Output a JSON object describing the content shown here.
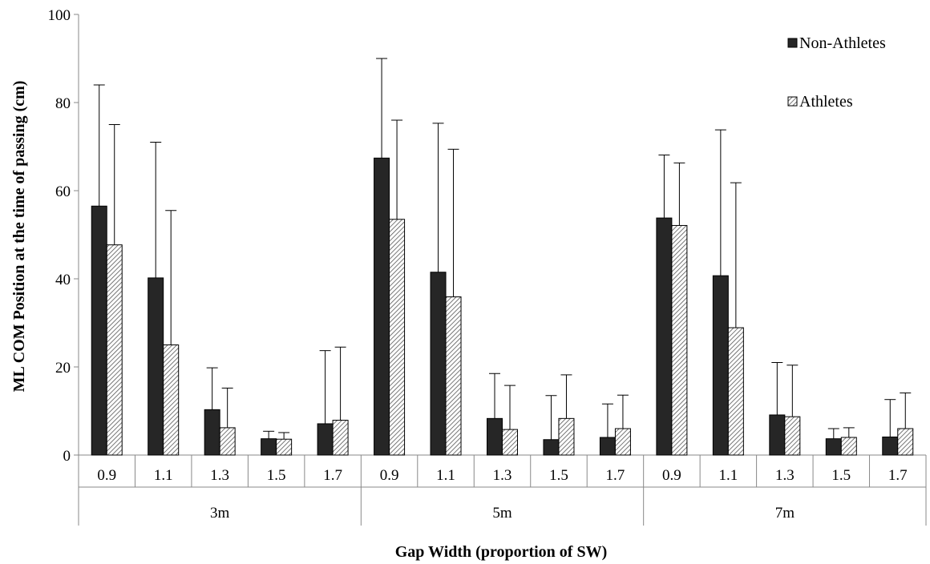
{
  "chart_data": {
    "type": "bar",
    "xlabel": "Gap Width (proportion of SW)",
    "ylabel": "ML COM Position at the time of passing (cm)",
    "ylim": [
      0,
      100
    ],
    "yticks": [
      0,
      20,
      40,
      60,
      80,
      100
    ],
    "grid": false,
    "legend_position": "top-right",
    "groups": [
      "3m",
      "5m",
      "7m"
    ],
    "subcategories": [
      "0.9",
      "1.1",
      "1.3",
      "1.5",
      "1.7"
    ],
    "series": [
      {
        "name": "Non-Athletes",
        "color": "#262626",
        "pattern": "solid",
        "values": [
          56.5,
          40.2,
          10.3,
          3.7,
          7.1,
          67.4,
          41.5,
          8.3,
          3.5,
          4.0,
          53.8,
          40.7,
          9.1,
          3.7,
          4.1
        ],
        "errors": [
          27.5,
          30.8,
          9.5,
          1.7,
          16.6,
          22.6,
          33.8,
          10.2,
          10.0,
          7.6,
          14.3,
          33.1,
          11.9,
          2.3,
          8.5
        ]
      },
      {
        "name": "Athletes",
        "color": "#bfbfbf",
        "pattern": "hatched",
        "values": [
          47.7,
          25.0,
          6.2,
          3.6,
          7.9,
          53.5,
          35.9,
          5.8,
          8.3,
          6.0,
          52.1,
          28.9,
          8.7,
          4.0,
          6.0
        ],
        "errors": [
          27.3,
          30.5,
          9.0,
          1.5,
          16.6,
          22.5,
          33.5,
          10.0,
          9.9,
          7.6,
          14.2,
          32.9,
          11.7,
          2.2,
          8.1
        ]
      }
    ]
  }
}
